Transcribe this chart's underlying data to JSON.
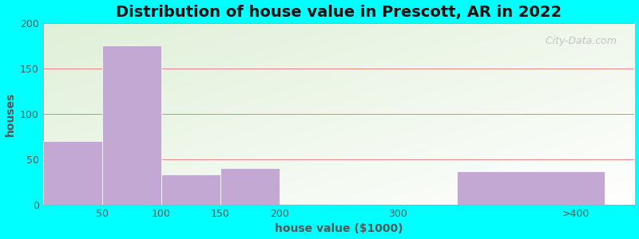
{
  "title": "Distribution of house value in Prescott, AR in 2022",
  "xlabel": "house value ($1000)",
  "ylabel": "houses",
  "xtick_labels": [
    "50",
    "100",
    "150",
    "200",
    "300",
    ">400"
  ],
  "xtick_positions": [
    1,
    2,
    3,
    4,
    6,
    9
  ],
  "bar_lefts": [
    0,
    1,
    2,
    3,
    5,
    7
  ],
  "bar_widths": [
    1,
    1,
    1,
    1,
    0,
    2.5
  ],
  "bar_heights": [
    70,
    175,
    33,
    40,
    0,
    37
  ],
  "bar_color": "#c4a8d4",
  "ylim": [
    0,
    200
  ],
  "xlim": [
    0,
    10
  ],
  "yticks": [
    0,
    50,
    100,
    150,
    200
  ],
  "background_color": "#00ffff",
  "grid_color": "#f08080",
  "title_fontsize": 14,
  "axis_label_fontsize": 10,
  "tick_fontsize": 9,
  "watermark": " City-Data.com"
}
